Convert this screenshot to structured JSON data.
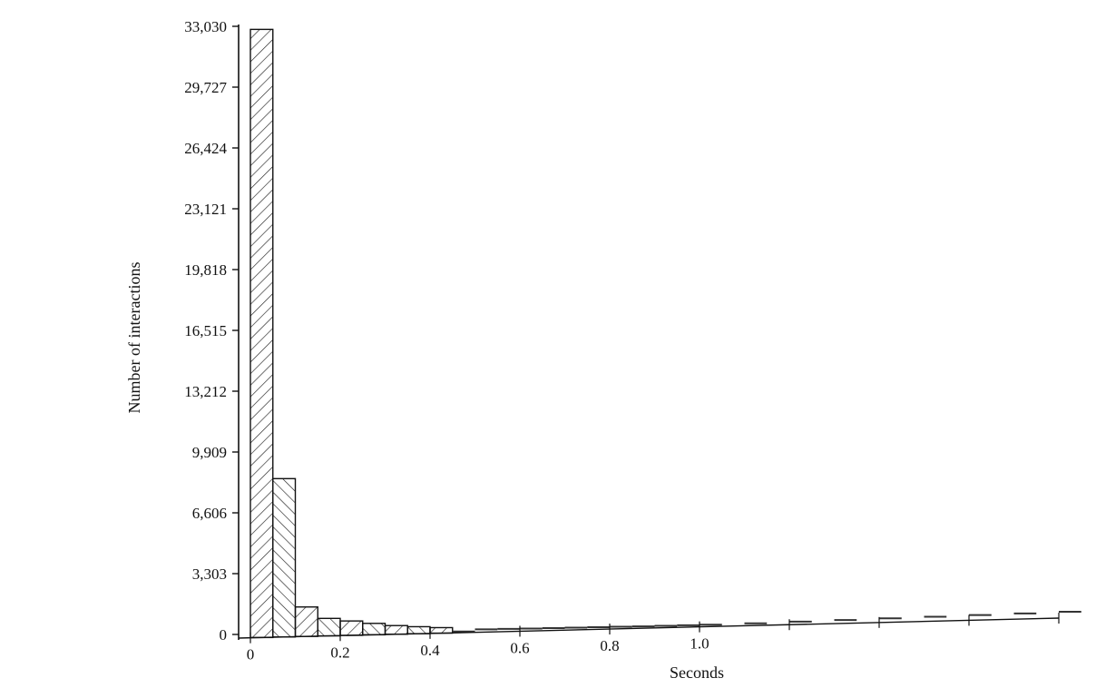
{
  "chart_data": {
    "type": "bar",
    "xlabel": "Seconds",
    "ylabel": "Number of interactions",
    "ylim": [
      0,
      33030
    ],
    "y_ticks": [
      0,
      3303,
      6606,
      9909,
      13212,
      16515,
      19818,
      23121,
      26424,
      29727,
      33030
    ],
    "y_tick_labels": [
      "0",
      "3,303",
      "6,606",
      "9,909",
      "13,212",
      "16,515",
      "19,818",
      "23,121",
      "26,424",
      "29,727",
      "33,030"
    ],
    "xlim": [
      0,
      1.8
    ],
    "x_tick_values": [
      0,
      0.2,
      0.4,
      0.6,
      0.8,
      1.0
    ],
    "x_tick_labels": [
      "0",
      "0.2",
      "0.4",
      "0.6",
      "0.8",
      "1.0"
    ],
    "bin_width": 0.05,
    "bins": [
      {
        "x": 0.0,
        "value": 33030,
        "hatch": "forward"
      },
      {
        "x": 0.05,
        "value": 8600,
        "hatch": "back"
      },
      {
        "x": 0.1,
        "value": 1600,
        "hatch": "forward"
      },
      {
        "x": 0.15,
        "value": 950,
        "hatch": "back"
      },
      {
        "x": 0.2,
        "value": 780,
        "hatch": "forward"
      },
      {
        "x": 0.25,
        "value": 620,
        "hatch": "back"
      },
      {
        "x": 0.3,
        "value": 470,
        "hatch": "forward"
      },
      {
        "x": 0.35,
        "value": 380,
        "hatch": "back"
      },
      {
        "x": 0.4,
        "value": 300,
        "hatch": "forward"
      },
      {
        "x": 0.45,
        "value": 60,
        "hatch": "none"
      },
      {
        "x": 0.5,
        "value": 150,
        "hatch": "none"
      },
      {
        "x": 0.55,
        "value": 140,
        "hatch": "none"
      },
      {
        "x": 0.6,
        "value": 130,
        "hatch": "none"
      },
      {
        "x": 0.65,
        "value": 125,
        "hatch": "none"
      },
      {
        "x": 0.7,
        "value": 120,
        "hatch": "none"
      },
      {
        "x": 0.75,
        "value": 115,
        "hatch": "none"
      },
      {
        "x": 0.8,
        "value": 110,
        "hatch": "none"
      },
      {
        "x": 0.85,
        "value": 100,
        "hatch": "none"
      },
      {
        "x": 0.9,
        "value": 100,
        "hatch": "none"
      },
      {
        "x": 0.95,
        "value": 100,
        "hatch": "none"
      },
      {
        "x": 1.0,
        "value": 100,
        "hatch": "none"
      },
      {
        "x": 1.1,
        "value": 120,
        "hatch": "none"
      },
      {
        "x": 1.2,
        "value": 150,
        "hatch": "none"
      },
      {
        "x": 1.3,
        "value": 180,
        "hatch": "none"
      },
      {
        "x": 1.4,
        "value": 210,
        "hatch": "none"
      },
      {
        "x": 1.5,
        "value": 240,
        "hatch": "none"
      },
      {
        "x": 1.6,
        "value": 270,
        "hatch": "none"
      },
      {
        "x": 1.7,
        "value": 300,
        "hatch": "none"
      },
      {
        "x": 1.8,
        "value": 330,
        "hatch": "none"
      }
    ],
    "grid": false,
    "legend": "none"
  }
}
